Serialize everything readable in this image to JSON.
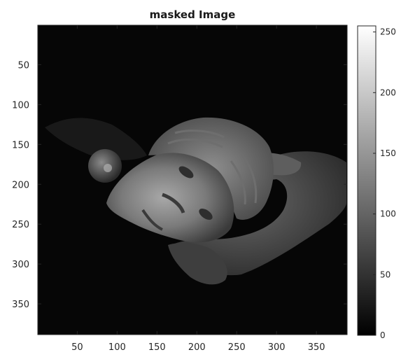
{
  "chart_data": {
    "type": "heatmap",
    "title": "masked Image",
    "xlabel": "",
    "ylabel": "",
    "xlim": [
      0.5,
      388.5
    ],
    "ylim": [
      0.5,
      388.5
    ],
    "y_direction": "reverse",
    "x_ticks": [
      50,
      100,
      150,
      200,
      250,
      300,
      350
    ],
    "y_ticks": [
      50,
      100,
      150,
      200,
      250,
      300,
      350
    ],
    "x_tick_labels": [
      "50",
      "100",
      "150",
      "200",
      "250",
      "300",
      "350"
    ],
    "y_tick_labels": [
      "50",
      "100",
      "150",
      "200",
      "250",
      "300",
      "350"
    ],
    "colormap": "gray",
    "colorbar": {
      "range": [
        0,
        255
      ],
      "ticks": [
        0,
        50,
        100,
        150,
        200,
        250
      ],
      "tick_labels": [
        "0",
        "50",
        "100",
        "150",
        "200",
        "250"
      ],
      "position": "right"
    },
    "content": "grayscale photograph of a marble head held in a hand, background masked to black"
  }
}
